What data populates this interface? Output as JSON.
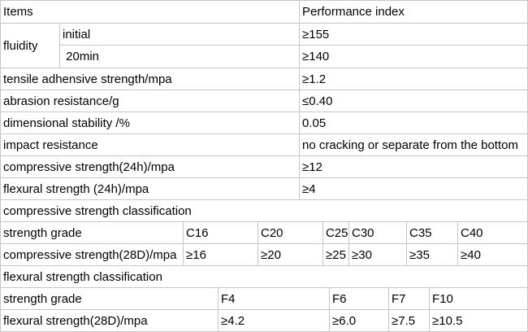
{
  "table": {
    "header": {
      "items": "Items",
      "performance_index": "Performance index"
    },
    "fluidity": {
      "label": "fluidity",
      "rows": [
        {
          "sub": "initial",
          "value": "≥155"
        },
        {
          "sub": " 20min",
          "value": "≥140"
        }
      ]
    },
    "properties": [
      {
        "label": "tensile adhensive strength/mpa",
        "value": "≥1.2"
      },
      {
        "label": "abrasion resistance/g",
        "value": "≤0.40"
      },
      {
        "label": "dimensional stability /%",
        "value": "0.05"
      },
      {
        "label": "impact resistance",
        "value": "no cracking or separate from the bottom"
      },
      {
        "label": "compressive strength(24h)/mpa",
        "value": "≥12"
      },
      {
        "label": "flexural strength (24h)/mpa",
        "value": "≥4"
      }
    ],
    "compressive_section": {
      "title": "compressive strength classification",
      "grade_label": "strength grade",
      "strength_label": "compressive strength(28D)/mpa",
      "grades": [
        "C16",
        "C20",
        "C25",
        "C30",
        "C35",
        "C40"
      ],
      "values": [
        "≥16",
        "≥20",
        "≥25",
        "≥30",
        "≥35",
        "≥40"
      ]
    },
    "flexural_section": {
      "title": "flexural strength classification",
      "grade_label": "strength grade",
      "strength_label": "flexural strength(28D)/mpa",
      "grades": [
        "F4",
        "F6",
        "F7",
        "F10"
      ],
      "values": [
        "≥4.2",
        "≥6.0",
        "≥7.5",
        "≥10.5"
      ]
    }
  },
  "colors": {
    "border": "#c6c6c6",
    "text": "#000000",
    "background": "#ffffff"
  }
}
